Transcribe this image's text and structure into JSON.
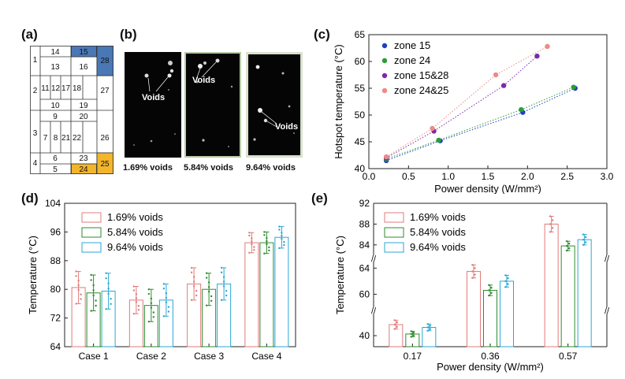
{
  "panels": {
    "a": "(a)",
    "b": "(b)",
    "c": "(c)",
    "d": "(d)",
    "e": "(e)"
  },
  "zone_map": {
    "rows": [
      {
        "label": "1",
        "cells": [
          "14",
          "15",
          "28",
          "13",
          "16"
        ]
      },
      {
        "label": "2",
        "cells": [
          "11",
          "12",
          "17",
          "18",
          "27",
          "10",
          "19"
        ]
      },
      {
        "label": "3",
        "cells": [
          "9",
          "20",
          "7",
          "8",
          "21",
          "22",
          "26"
        ]
      },
      {
        "label": "4",
        "cells": [
          "6",
          "23",
          "5",
          "24",
          "25"
        ]
      }
    ],
    "highlight_blue": "#4a78b5",
    "highlight_orange": "#f2b52c"
  },
  "void_images": [
    {
      "caption": "1.69% voids",
      "label": "Voids"
    },
    {
      "caption": "5.84% voids",
      "label": "Voids"
    },
    {
      "caption": "9.64% voids",
      "label": "Voids"
    }
  ],
  "chart_data": [
    {
      "id": "c",
      "type": "scatter",
      "xlabel": "Power density (W/mm²)",
      "ylabel": "Hotspot temperature (°C)",
      "xlim": [
        0.0,
        3.0
      ],
      "ylim": [
        40,
        65
      ],
      "xticks": [
        "0.0",
        "0.5",
        "1.0",
        "1.5",
        "2.0",
        "2.5",
        "3.0"
      ],
      "yticks": [
        "40",
        "45",
        "50",
        "55",
        "60",
        "65"
      ],
      "legend": "top-left",
      "series": [
        {
          "name": "zone 15",
          "color": "#1f3fbf",
          "x": [
            0.22,
            0.9,
            1.94,
            2.6
          ],
          "y": [
            41.5,
            45.2,
            50.5,
            55.0
          ]
        },
        {
          "name": "zone 24",
          "color": "#2a9d34",
          "x": [
            0.22,
            0.88,
            1.92,
            2.58
          ],
          "y": [
            41.8,
            45.3,
            51.0,
            55.2
          ]
        },
        {
          "name": "zone 15&28",
          "color": "#7b2aa5",
          "x": [
            0.22,
            0.82,
            1.7,
            2.12
          ],
          "y": [
            42.0,
            47.0,
            55.5,
            61.0
          ]
        },
        {
          "name": "zone 24&25",
          "color": "#ee8a84",
          "x": [
            0.22,
            0.8,
            1.6,
            2.25
          ],
          "y": [
            42.2,
            47.5,
            57.5,
            62.8
          ]
        }
      ]
    },
    {
      "id": "d",
      "type": "bar",
      "ylabel": "Temperature (°C)",
      "ylim": [
        64,
        104
      ],
      "yticks": [
        "64",
        "72",
        "80",
        "88",
        "96",
        "104"
      ],
      "categories": [
        "Case 1",
        "Case 2",
        "Case 3",
        "Case 4"
      ],
      "legend": "top-left",
      "series": [
        {
          "name": "1.69% voids",
          "color": "#e07b7b",
          "values": [
            80.5,
            77.0,
            81.5,
            93.0
          ],
          "err": [
            4.5,
            3.8,
            4.5,
            2.8
          ]
        },
        {
          "name": "5.84% voids",
          "color": "#2e8b2e",
          "values": [
            79.0,
            75.5,
            80.0,
            93.0
          ],
          "err": [
            5.0,
            4.5,
            4.5,
            3.0
          ]
        },
        {
          "name": "9.64% voids",
          "color": "#2ba6d6",
          "values": [
            79.5,
            77.0,
            81.5,
            94.5
          ],
          "err": [
            5.0,
            4.5,
            4.5,
            3.0
          ]
        }
      ]
    },
    {
      "id": "e",
      "type": "bar",
      "xlabel": "Power density (W/mm²)",
      "ylabel": "Temperature (°C)",
      "yticks": [
        "40",
        "60",
        "64",
        "84",
        "88",
        "92"
      ],
      "categories": [
        "0.17",
        "0.36",
        "0.57"
      ],
      "legend": "top-left",
      "series": [
        {
          "name": "1.69% voids",
          "color": "#e07b7b",
          "values": [
            42.0,
            63.5,
            88.0
          ],
          "err": [
            0.8,
            1.0,
            1.5
          ]
        },
        {
          "name": "5.84% voids",
          "color": "#2e8b2e",
          "values": [
            40.3,
            60.6,
            83.8
          ],
          "err": [
            0.5,
            0.8,
            0.9
          ]
        },
        {
          "name": "9.64% voids",
          "color": "#2ba6d6",
          "values": [
            41.5,
            62.0,
            85.0
          ],
          "err": [
            0.6,
            0.9,
            1.0
          ]
        }
      ]
    }
  ]
}
